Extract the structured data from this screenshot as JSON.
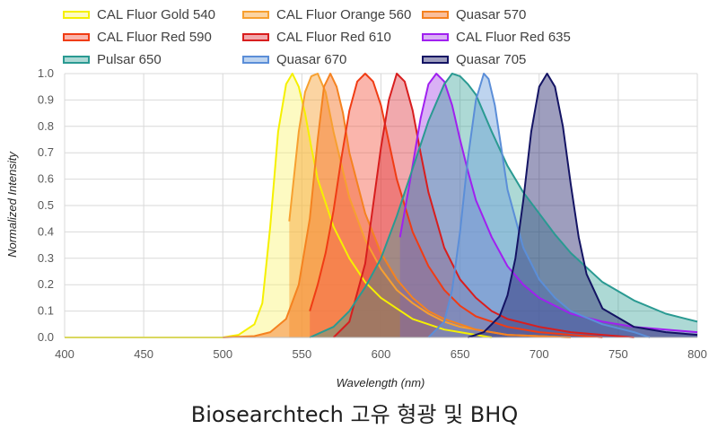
{
  "caption": "Biosearchtech 고유 형광 및 BHQ",
  "chart_data": {
    "type": "area",
    "xlabel": "Wavelength (nm)",
    "ylabel": "Normalized Intensity",
    "xlim": [
      400,
      800
    ],
    "ylim": [
      0,
      1.0
    ],
    "xticks": [
      "400",
      "450",
      "500",
      "550",
      "600",
      "650",
      "700",
      "750",
      "800"
    ],
    "yticks": [
      "0.0",
      "0.1",
      "0.2",
      "0.3",
      "0.4",
      "0.5",
      "0.6",
      "0.7",
      "0.8",
      "0.9",
      "1.0"
    ],
    "grid": true,
    "legend_position": "top",
    "series": [
      {
        "name": "CAL Fluor Gold 540",
        "color": "#f5f000",
        "fill": "rgba(250,245,120,0.45)",
        "x": [
          400,
          500,
          510,
          520,
          525,
          530,
          535,
          540,
          544,
          548,
          552,
          556,
          560,
          570,
          580,
          590,
          600,
          610,
          620,
          630,
          640,
          650,
          660,
          670
        ],
        "y": [
          0.0,
          0.0,
          0.01,
          0.05,
          0.13,
          0.42,
          0.78,
          0.96,
          1.0,
          0.95,
          0.85,
          0.72,
          0.6,
          0.42,
          0.3,
          0.21,
          0.15,
          0.11,
          0.07,
          0.05,
          0.03,
          0.02,
          0.01,
          0.0
        ]
      },
      {
        "name": "CAL Fluor Orange 560",
        "color": "#f7a030",
        "fill": "rgba(247,160,48,0.45)",
        "x": [
          542,
          548,
          552,
          556,
          560,
          565,
          570,
          580,
          590,
          600,
          610,
          620,
          630,
          640,
          650,
          660,
          680,
          700,
          720
        ],
        "y": [
          0.44,
          0.78,
          0.93,
          0.99,
          1.0,
          0.93,
          0.78,
          0.53,
          0.37,
          0.26,
          0.18,
          0.13,
          0.09,
          0.06,
          0.04,
          0.03,
          0.01,
          0.005,
          0.0
        ]
      },
      {
        "name": "Quasar 570",
        "color": "#f58220",
        "fill": "rgba(245,110,30,0.45)",
        "x": [
          500,
          520,
          530,
          540,
          548,
          555,
          560,
          564,
          568,
          572,
          576,
          580,
          590,
          600,
          610,
          620,
          630,
          640,
          650,
          660,
          680,
          700,
          720
        ],
        "y": [
          0.0,
          0.005,
          0.02,
          0.07,
          0.2,
          0.45,
          0.75,
          0.95,
          1.0,
          0.95,
          0.85,
          0.7,
          0.47,
          0.32,
          0.22,
          0.15,
          0.1,
          0.07,
          0.05,
          0.03,
          0.01,
          0.005,
          0.0
        ]
      },
      {
        "name": "CAL Fluor Red 590",
        "color": "#f03c14",
        "fill": "rgba(245,90,70,0.45)",
        "x": [
          555,
          560,
          565,
          570,
          575,
          580,
          585,
          590,
          595,
          600,
          605,
          610,
          620,
          630,
          640,
          650,
          660,
          680,
          700,
          720,
          740
        ],
        "y": [
          0.1,
          0.2,
          0.32,
          0.48,
          0.68,
          0.86,
          0.97,
          1.0,
          0.97,
          0.88,
          0.74,
          0.6,
          0.4,
          0.27,
          0.18,
          0.12,
          0.08,
          0.04,
          0.02,
          0.01,
          0.0
        ]
      },
      {
        "name": "CAL Fluor Red 610",
        "color": "#d81e1e",
        "fill": "rgba(220,40,50,0.4)",
        "x": [
          570,
          580,
          590,
          595,
          600,
          605,
          610,
          615,
          620,
          625,
          630,
          640,
          650,
          660,
          670,
          680,
          700,
          720,
          740,
          760
        ],
        "y": [
          0.0,
          0.06,
          0.28,
          0.5,
          0.72,
          0.9,
          1.0,
          0.97,
          0.86,
          0.7,
          0.55,
          0.34,
          0.22,
          0.15,
          0.1,
          0.07,
          0.04,
          0.02,
          0.01,
          0.0
        ]
      },
      {
        "name": "CAL Fluor Red 635",
        "color": "#a020f0",
        "fill": "rgba(160,60,230,0.4)",
        "x": [
          612,
          618,
          625,
          630,
          635,
          640,
          645,
          650,
          655,
          660,
          670,
          680,
          690,
          700,
          720,
          740,
          760,
          780,
          800
        ],
        "y": [
          0.38,
          0.58,
          0.83,
          0.96,
          1.0,
          0.97,
          0.88,
          0.75,
          0.63,
          0.52,
          0.38,
          0.27,
          0.2,
          0.15,
          0.09,
          0.06,
          0.04,
          0.03,
          0.02
        ]
      },
      {
        "name": "Pulsar 650",
        "color": "#2a9a92",
        "fill": "rgba(50,160,150,0.4)",
        "x": [
          555,
          570,
          580,
          590,
          600,
          610,
          620,
          630,
          640,
          645,
          650,
          655,
          660,
          665,
          670,
          680,
          690,
          700,
          710,
          720,
          740,
          760,
          780,
          800
        ],
        "y": [
          0.0,
          0.04,
          0.1,
          0.19,
          0.3,
          0.46,
          0.64,
          0.82,
          0.96,
          1.0,
          0.99,
          0.96,
          0.92,
          0.85,
          0.78,
          0.65,
          0.55,
          0.47,
          0.39,
          0.32,
          0.21,
          0.14,
          0.09,
          0.06
        ]
      },
      {
        "name": "Quasar 670",
        "color": "#5b8ed8",
        "fill": "rgba(110,160,220,0.45)",
        "x": [
          630,
          640,
          645,
          650,
          655,
          660,
          665,
          668,
          672,
          676,
          680,
          690,
          700,
          710,
          720,
          740,
          760,
          770
        ],
        "y": [
          0.0,
          0.06,
          0.18,
          0.4,
          0.68,
          0.9,
          1.0,
          0.98,
          0.88,
          0.72,
          0.56,
          0.34,
          0.22,
          0.15,
          0.1,
          0.05,
          0.02,
          0.0
        ]
      },
      {
        "name": "Quasar 705",
        "color": "#141464",
        "fill": "rgba(40,40,110,0.45)",
        "x": [
          655,
          665,
          675,
          680,
          685,
          690,
          695,
          700,
          705,
          710,
          715,
          720,
          725,
          730,
          740,
          760,
          780,
          800
        ],
        "y": [
          0.0,
          0.02,
          0.08,
          0.16,
          0.3,
          0.52,
          0.78,
          0.95,
          1.0,
          0.95,
          0.8,
          0.58,
          0.38,
          0.24,
          0.11,
          0.04,
          0.02,
          0.01
        ]
      }
    ]
  }
}
